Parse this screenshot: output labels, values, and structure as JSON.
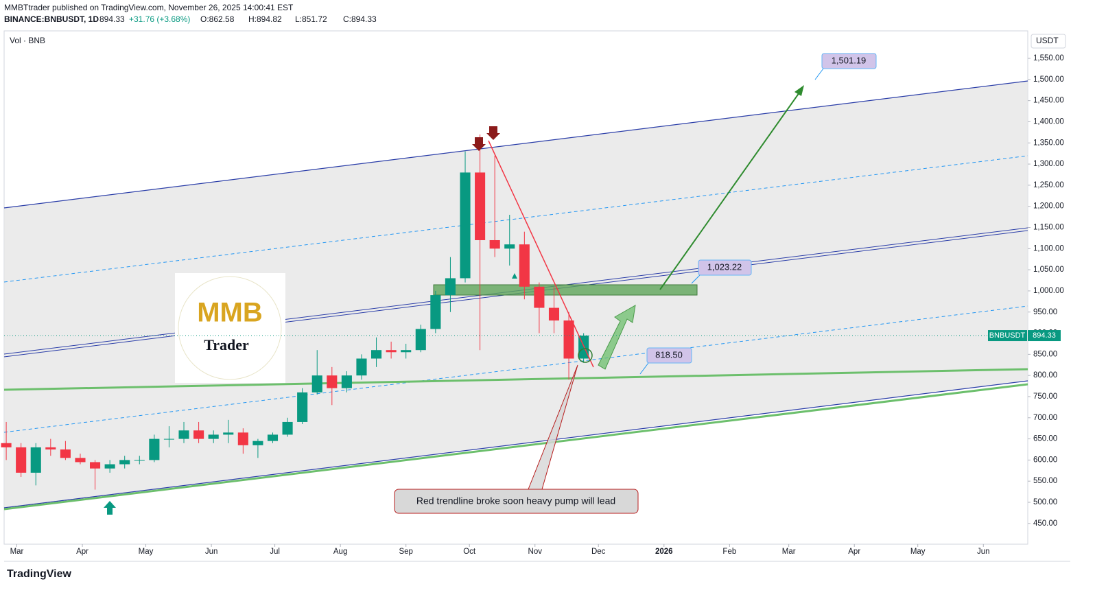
{
  "header": {
    "publisher": "MMBTtrader published on TradingView.com, November 26, 2025 14:00:41 EST",
    "symbol": "BINANCE:BNBUSDT, 1D",
    "last": "894.33",
    "change": "+31.76 (+3.68%)",
    "open": "O:862.58",
    "high": "H:894.82",
    "low": "L:851.72",
    "close": "C:894.33"
  },
  "volume_label": "Vol · BNB",
  "footer": "TradingView",
  "logo": {
    "top": "MMB",
    "bottom": "Trader"
  },
  "chart_data": {
    "type": "candlestick",
    "currency": "USDT",
    "symbol_tag": "BNBUSDT",
    "last_price": 894.33,
    "x": [
      -5,
      2,
      9,
      16,
      23,
      30,
      37,
      44,
      51,
      58,
      65,
      72,
      79,
      86,
      93,
      100,
      107,
      114,
      121,
      128,
      135,
      142,
      149,
      156,
      163,
      170,
      177,
      184,
      191,
      198,
      205,
      212,
      219,
      226,
      233,
      240,
      247,
      254,
      261,
      268
    ],
    "open": [
      640,
      630,
      570,
      630,
      625,
      605,
      595,
      580,
      590,
      600,
      600,
      650,
      650,
      670,
      650,
      660,
      665,
      635,
      645,
      660,
      690,
      760,
      800,
      770,
      800,
      840,
      860,
      855,
      860,
      910,
      990,
      1030,
      1280,
      1120,
      1100,
      1110,
      1010,
      960,
      930,
      840
    ],
    "high": [
      690,
      640,
      640,
      650,
      645,
      615,
      600,
      600,
      610,
      610,
      660,
      680,
      690,
      690,
      670,
      695,
      675,
      650,
      665,
      700,
      770,
      860,
      820,
      810,
      850,
      890,
      880,
      875,
      920,
      1000,
      1080,
      1330,
      1370,
      1320,
      1180,
      1140,
      1020,
      1010,
      950,
      900
    ],
    "low": [
      600,
      560,
      540,
      610,
      600,
      590,
      530,
      570,
      580,
      590,
      595,
      630,
      640,
      640,
      640,
      640,
      615,
      605,
      640,
      655,
      685,
      755,
      730,
      760,
      790,
      820,
      840,
      840,
      855,
      900,
      950,
      1020,
      860,
      1080,
      1060,
      980,
      900,
      900,
      790,
      830
    ],
    "close": [
      630,
      570,
      630,
      625,
      605,
      595,
      580,
      590,
      600,
      600,
      650,
      650,
      670,
      650,
      660,
      665,
      635,
      645,
      660,
      690,
      760,
      800,
      770,
      800,
      840,
      860,
      855,
      860,
      910,
      990,
      1030,
      1280,
      1120,
      1100,
      1110,
      1010,
      960,
      930,
      840,
      894.33
    ],
    "up_color": "#089981",
    "down_color": "#f23645",
    "ylim": [
      401,
      1615
    ],
    "yticks": [
      {
        "value": 450,
        "label": "450.00"
      },
      {
        "value": 500,
        "label": "500.00"
      },
      {
        "value": 550,
        "label": "550.00"
      },
      {
        "value": 600,
        "label": "600.00"
      },
      {
        "value": 650,
        "label": "650.00"
      },
      {
        "value": 700,
        "label": "700.00"
      },
      {
        "value": 750,
        "label": "750.00"
      },
      {
        "value": 800,
        "label": "800.00"
      },
      {
        "value": 850,
        "label": "850.00"
      },
      {
        "value": 900,
        "label": "900.00"
      },
      {
        "value": 950,
        "label": "950.00"
      },
      {
        "value": 1000,
        "label": "1,000.00"
      },
      {
        "value": 1050,
        "label": "1,050.00"
      },
      {
        "value": 1100,
        "label": "1,100.00"
      },
      {
        "value": 1150,
        "label": "1,150.00"
      },
      {
        "value": 1200,
        "label": "1,200.00"
      },
      {
        "value": 1250,
        "label": "1,250.00"
      },
      {
        "value": 1300,
        "label": "1,300.00"
      },
      {
        "value": 1350,
        "label": "1,350.00"
      },
      {
        "value": 1400,
        "label": "1,400.00"
      },
      {
        "value": 1450,
        "label": "1,450.00"
      },
      {
        "value": 1500,
        "label": "1,500.00"
      },
      {
        "value": 1550,
        "label": "1,550.00"
      }
    ],
    "xlim": [
      -6,
      478
    ],
    "xticks": [
      {
        "value": 0,
        "label": "Mar"
      },
      {
        "value": 31,
        "label": "Apr"
      },
      {
        "value": 61,
        "label": "May"
      },
      {
        "value": 92,
        "label": "Jun"
      },
      {
        "value": 122,
        "label": "Jul"
      },
      {
        "value": 153,
        "label": "Aug"
      },
      {
        "value": 184,
        "label": "Sep"
      },
      {
        "value": 214,
        "label": "Oct"
      },
      {
        "value": 245,
        "label": "Nov"
      },
      {
        "value": 275,
        "label": "Dec"
      },
      {
        "value": 306,
        "label": "2026"
      },
      {
        "value": 337,
        "label": "Feb"
      },
      {
        "value": 365,
        "label": "Mar"
      },
      {
        "value": 396,
        "label": "Apr"
      },
      {
        "value": 426,
        "label": "May"
      },
      {
        "value": 457,
        "label": "Jun"
      }
    ],
    "annotations": {
      "target": "1,501.19",
      "zone": "1,023.22",
      "support": "818.50",
      "note": "Red trendline broke soon heavy pump will lead"
    }
  }
}
